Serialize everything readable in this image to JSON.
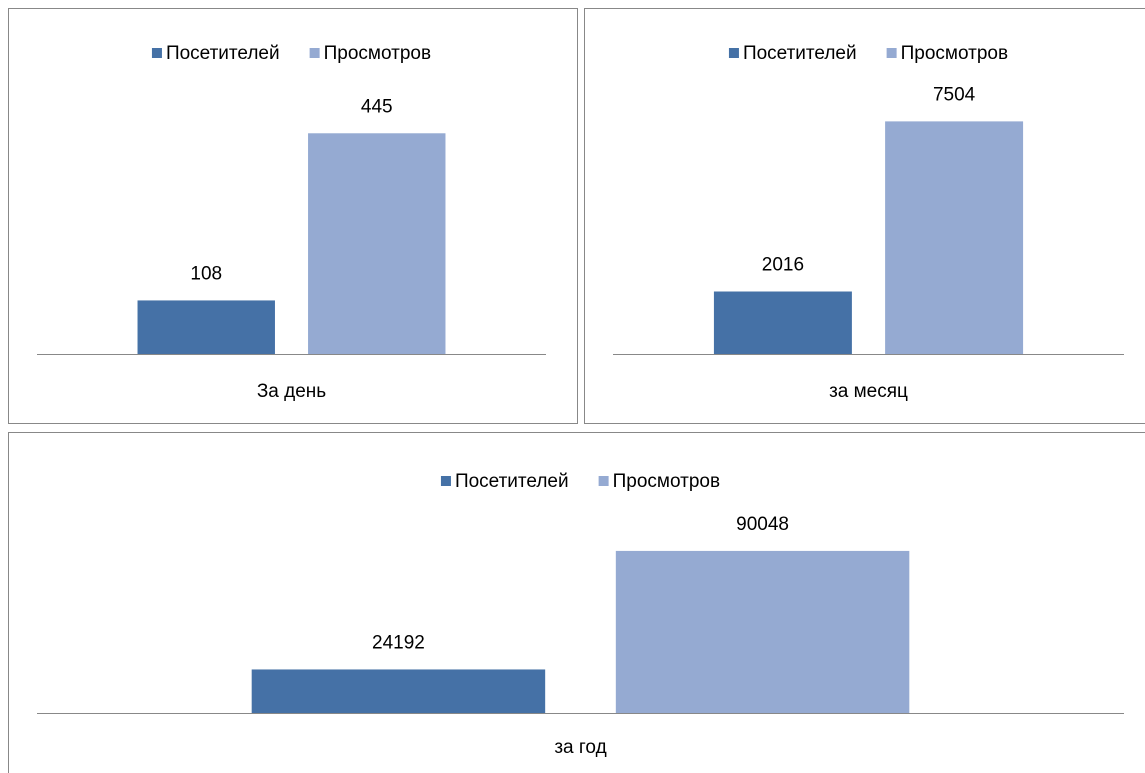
{
  "chart_data": [
    {
      "type": "bar",
      "categories": [
        "За день"
      ],
      "ylim": [
        0,
        500
      ],
      "series": [
        {
          "name": "Посетителей",
          "color": "#4571a6",
          "values": [
            108
          ]
        },
        {
          "name": "Просмотров",
          "color": "#95aad2",
          "values": [
            445
          ]
        }
      ]
    },
    {
      "type": "bar",
      "categories": [
        "за месяц"
      ],
      "ylim": [
        0,
        8000
      ],
      "series": [
        {
          "name": "Посетителей",
          "color": "#4571a6",
          "values": [
            2016
          ]
        },
        {
          "name": "Просмотров",
          "color": "#95aad2",
          "values": [
            7504
          ]
        }
      ]
    },
    {
      "type": "bar",
      "categories": [
        "за год"
      ],
      "ylim": [
        0,
        100000
      ],
      "series": [
        {
          "name": "Посетителей",
          "color": "#4571a6",
          "values": [
            24192
          ]
        },
        {
          "name": "Просмотров",
          "color": "#95aad2",
          "values": [
            90048
          ]
        }
      ]
    }
  ]
}
